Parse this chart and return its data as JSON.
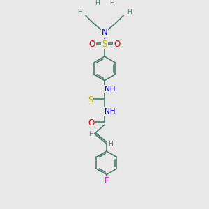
{
  "bg_color": "#e8e8e8",
  "bond_color": "#4a7a6a",
  "bond_width": 1.2,
  "atom_colors": {
    "N": "#0000ee",
    "S": "#bbbb00",
    "O": "#ee0000",
    "F": "#ee00ee",
    "H": "#4a7a6a"
  },
  "figsize": [
    3.0,
    3.0
  ],
  "dpi": 100,
  "xlim": [
    -2.2,
    2.2
  ],
  "ylim": [
    -4.8,
    4.8
  ]
}
